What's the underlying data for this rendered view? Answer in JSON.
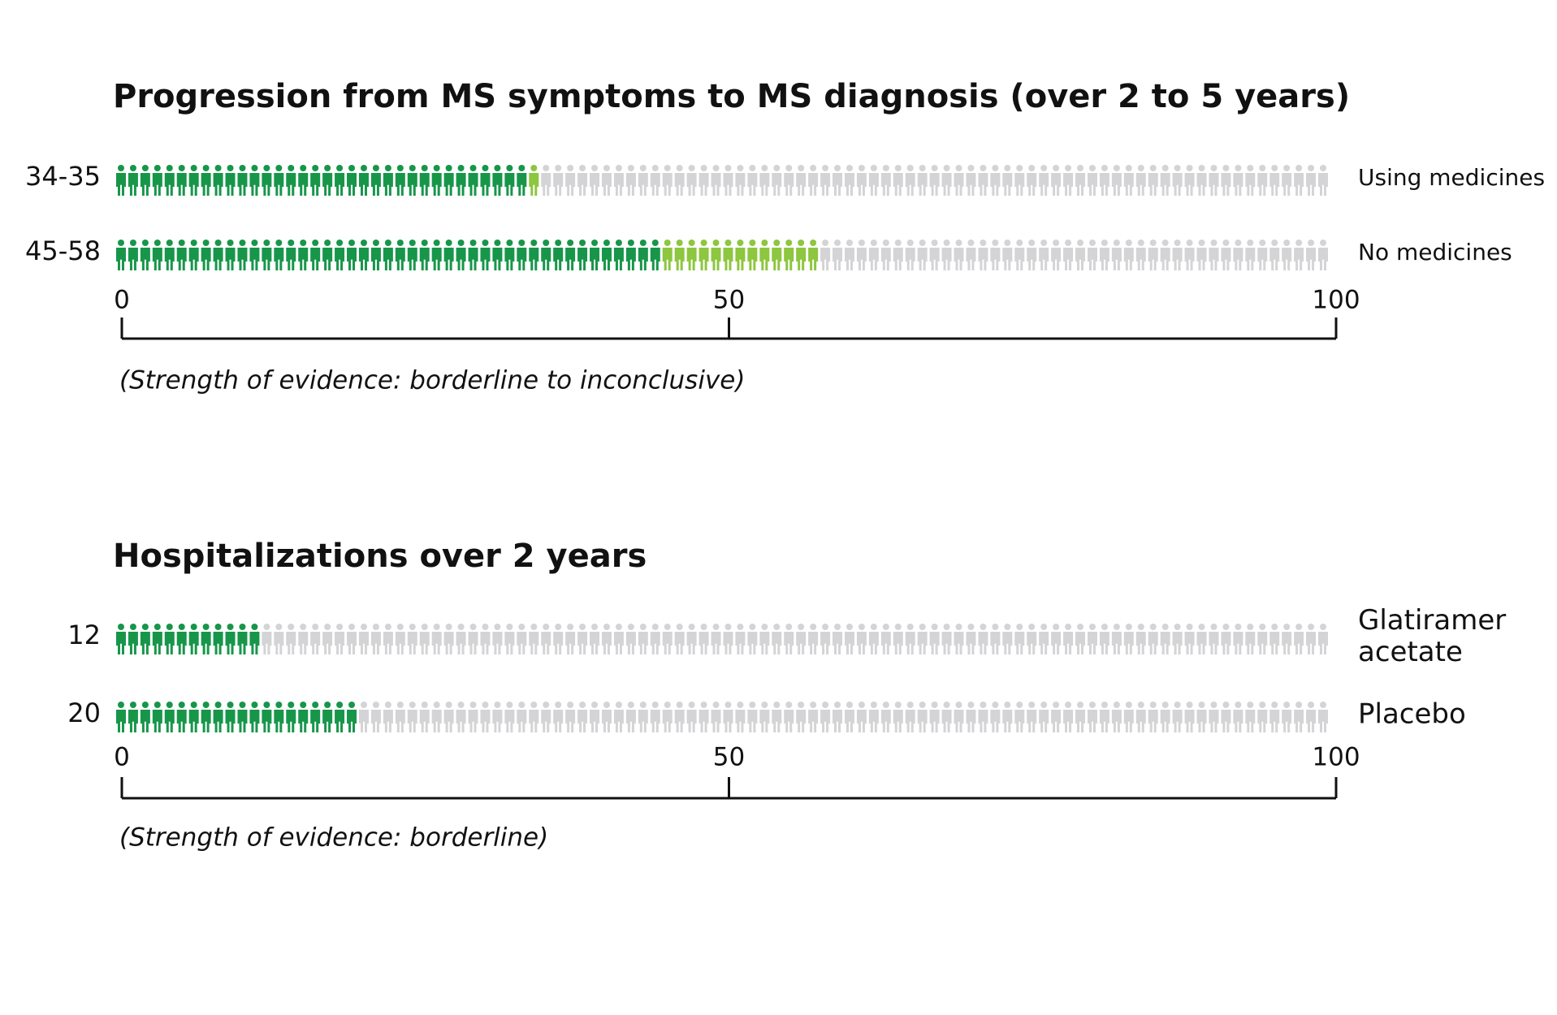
{
  "chart_data": [
    {
      "type": "pictograph",
      "title": "Progression from MS symptoms to MS diagnosis (over 2 to 5 years)",
      "note": "(Strength of evidence: borderline to inconclusive)",
      "categories": [
        "Using medicines",
        "No medicines"
      ],
      "low": [
        34,
        45
      ],
      "high": [
        35,
        58
      ],
      "value_labels": [
        "34-35",
        "45-58"
      ],
      "color": "#17964a",
      "range_color": "#8dc63f",
      "empty_color": "#d4d4d6",
      "xlim": [
        0,
        100
      ],
      "xticks": [
        0,
        50,
        100
      ]
    },
    {
      "type": "pictograph",
      "title": "Hospitalizations over 2 years",
      "note": "(Strength of evidence: borderline)",
      "categories": [
        "Glatiramer acetate",
        "Placebo"
      ],
      "values": [
        12,
        20
      ],
      "color": "#17964a",
      "empty_color": "#d4d4d6",
      "xlim": [
        0,
        100
      ],
      "xticks": [
        0,
        50,
        100
      ]
    }
  ]
}
